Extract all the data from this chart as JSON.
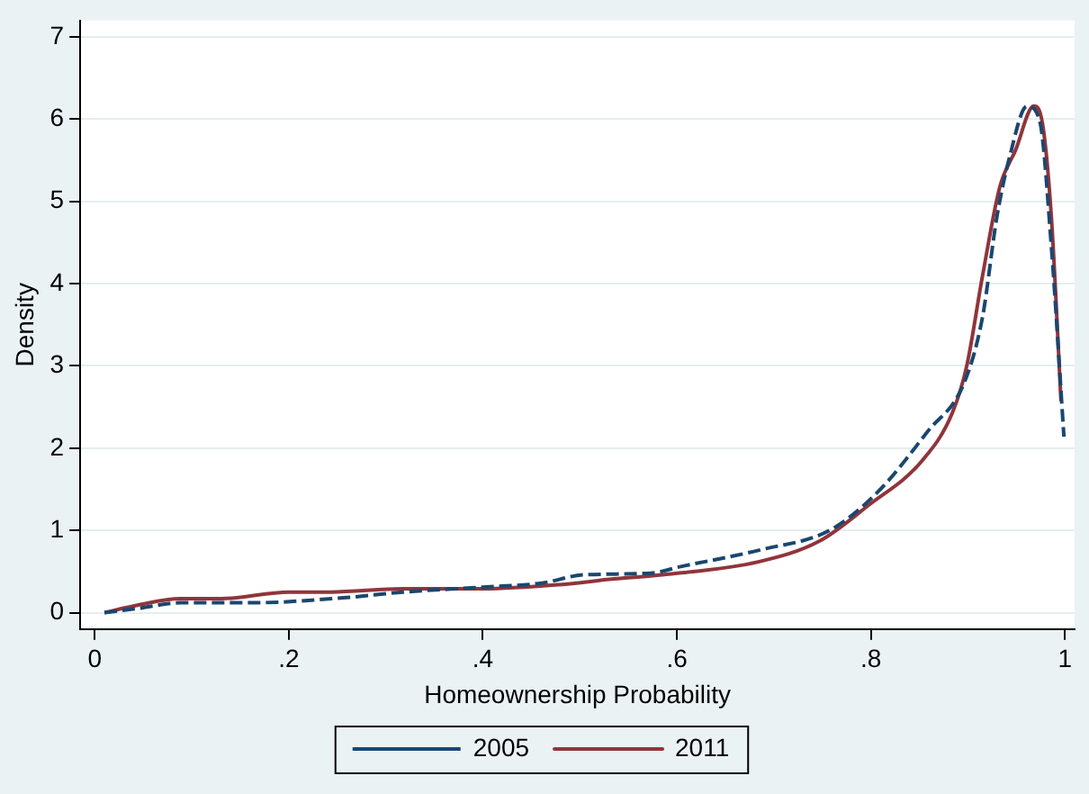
{
  "chart_data": {
    "type": "line",
    "xlabel": "Homeownership Probability",
    "ylabel": "Density",
    "xlim": [
      -0.015,
      1.01
    ],
    "ylim": [
      -0.2,
      7.2
    ],
    "xticks": [
      0,
      {
        "value": 0.2,
        "label": ".2"
      },
      {
        "value": 0.4,
        "label": ".4"
      },
      {
        "value": 0.6,
        "label": ".6"
      },
      {
        "value": 0.8,
        "label": ".8"
      },
      1
    ],
    "yticks": [
      0,
      1,
      2,
      3,
      4,
      5,
      6,
      7
    ],
    "grid": "y",
    "legend": "bottom",
    "marker": "none",
    "series": [
      {
        "name": "2005",
        "color": "#1a476f",
        "line_style": "dashed",
        "x": [
          0.01,
          0.044,
          0.088,
          0.162,
          0.256,
          0.318,
          0.4,
          0.461,
          0.504,
          0.573,
          0.604,
          0.685,
          0.759,
          0.809,
          0.859,
          0.896,
          0.915,
          0.93,
          0.943,
          0.961,
          0.974,
          0.986,
          0.999
        ],
        "values": [
          0,
          0.05,
          0.12,
          0.12,
          0.18,
          0.25,
          0.31,
          0.36,
          0.46,
          0.48,
          0.56,
          0.76,
          1.01,
          1.49,
          2.21,
          2.79,
          3.59,
          4.82,
          5.54,
          6.16,
          5.98,
          4.46,
          2.14
        ]
      },
      {
        "name": "2011",
        "color": "#90353b",
        "line_style": "solid",
        "x": [
          0.01,
          0.044,
          0.088,
          0.131,
          0.2,
          0.243,
          0.318,
          0.4,
          0.479,
          0.535,
          0.585,
          0.685,
          0.747,
          0.797,
          0.853,
          0.884,
          0.899,
          0.915,
          0.933,
          0.949,
          0.968,
          0.977,
          0.986,
          0.996
        ],
        "values": [
          0,
          0.09,
          0.17,
          0.17,
          0.25,
          0.25,
          0.29,
          0.29,
          0.34,
          0.41,
          0.46,
          0.62,
          0.87,
          1.3,
          1.85,
          2.43,
          3.01,
          4.09,
          5.18,
          5.62,
          6.16,
          5.94,
          4.82,
          2.57
        ]
      }
    ]
  }
}
